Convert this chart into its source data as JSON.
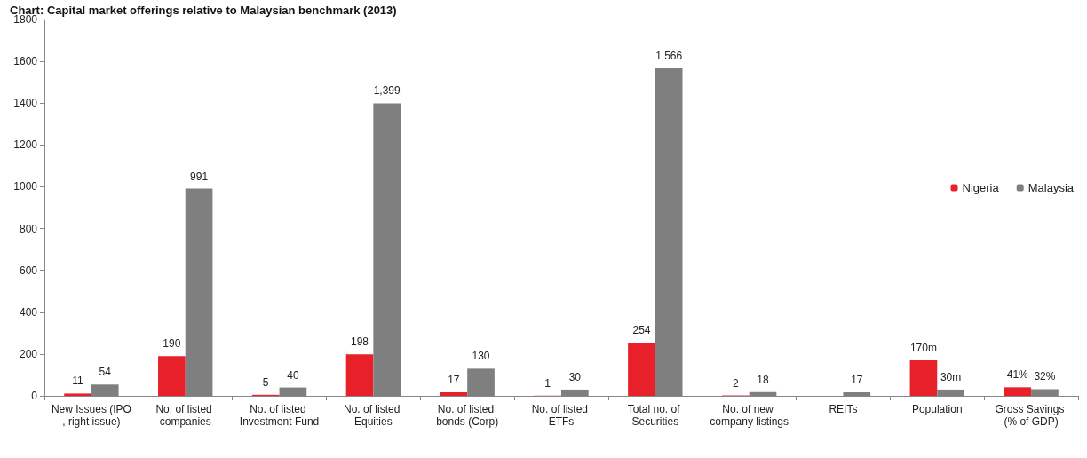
{
  "chart_data": {
    "type": "bar",
    "title": "Chart: Capital market offerings relative to Malaysian benchmark (2013)",
    "categories": [
      "New Issues (IPO, right issue)",
      "No. of listed companies",
      "No. of listed Investment Fund",
      "No. of listed Equities",
      "No. of listed bonds (Corp)",
      "No. of listed ETFs",
      "Total no. of Securities",
      "No. of new company listings",
      "REITs",
      "Population",
      "Gross Savings (% of GDP)"
    ],
    "series": [
      {
        "name": "Nigeria",
        "color": "#e8202a",
        "values": [
          11,
          190,
          5,
          198,
          17,
          1,
          254,
          2,
          null,
          170,
          41
        ],
        "value_labels": [
          "11",
          "190",
          "5",
          "198",
          "17",
          "1",
          "254",
          "2",
          null,
          "170m",
          "41%"
        ]
      },
      {
        "name": "Malaysia",
        "color": "#7f7f7f",
        "values": [
          54,
          991,
          40,
          1399,
          130,
          30,
          1566,
          18,
          17,
          30,
          32
        ],
        "value_labels": [
          "54",
          "991",
          "40",
          "1,399",
          "130",
          "30",
          "1,566",
          "18",
          "17",
          "30m",
          "32%"
        ]
      }
    ],
    "ylim": [
      0,
      1800
    ],
    "yticks": [
      0,
      200,
      400,
      600,
      800,
      1000,
      1200,
      1400,
      1600,
      1800
    ],
    "grid": false,
    "legend": "right"
  }
}
